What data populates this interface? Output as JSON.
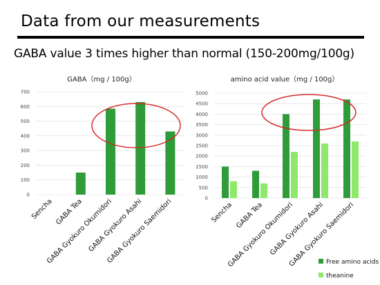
{
  "slide": {
    "title": "Data from our measurements",
    "subtitle": "GABA value 3 times higher than normal (150-200mg/100g)"
  },
  "colors": {
    "free_amino_acids": "#2e9c38",
    "theanine": "#8ee86a",
    "highlight_ellipse": "#d42a2a",
    "gridline": "#d9d9d9"
  },
  "chart_data": [
    {
      "type": "bar",
      "title": "GABA（mg / 100g）",
      "categories": [
        "Sencha",
        "GABA Tea",
        "GABA Gyokuro Okumidori",
        "GABA Gyokuro Asahi",
        "GABA Gyokuro Saemidori"
      ],
      "series": [
        {
          "values": [
            0,
            150,
            585,
            630,
            430
          ]
        }
      ],
      "ylim": [
        0,
        700
      ],
      "yticks": [
        0,
        100,
        200,
        300,
        400,
        500,
        600,
        700
      ],
      "grid": true,
      "legend": "none",
      "highlight": "Gyokuro bars circled"
    },
    {
      "type": "bar",
      "title": "amino acid value（mg / 100g）",
      "categories": [
        "Sencha",
        "GABA Tea",
        "GABA Gyokuro Okumidori",
        "GABA Gyokuro Asahi",
        "GABA Gyokuro Saemidori"
      ],
      "series": [
        {
          "name": "Free amino acids",
          "values": [
            1500,
            1300,
            4000,
            4700,
            4700
          ]
        },
        {
          "name": "theanine",
          "values": [
            800,
            700,
            2200,
            2600,
            2700
          ]
        }
      ],
      "ylim": [
        0,
        5000
      ],
      "yticks": [
        0,
        500,
        1000,
        1500,
        2000,
        2500,
        3000,
        3500,
        4000,
        4500,
        5000
      ],
      "grid": true,
      "legend": "bottom-right",
      "highlight": "Gyokuro bars circled"
    }
  ]
}
